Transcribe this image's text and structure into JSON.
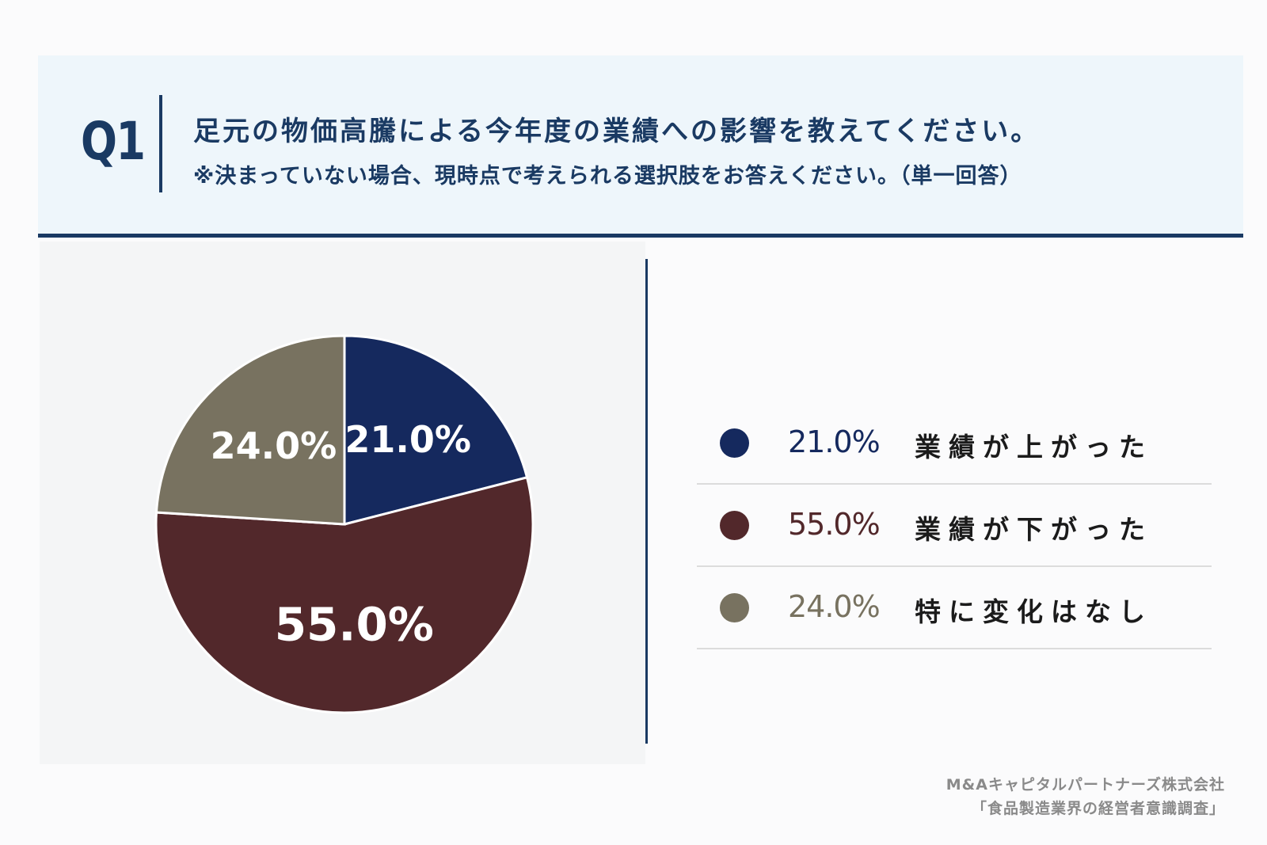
{
  "question": {
    "label": "Q1",
    "text": "足元の物価高騰による今年度の業績への影響を教えてください。",
    "note": "※決まっていない場合、現時点で考えられる選択肢をお答えください。（単一回答）"
  },
  "colors": {
    "up": "#15295e",
    "down": "#52282b",
    "none": "#787260",
    "accent": "#1a3a63"
  },
  "chart_data": {
    "type": "pie",
    "title": "",
    "slices": [
      {
        "label": "業績が上がった",
        "value": 21.0,
        "display": "21.0%",
        "color": "#15295e"
      },
      {
        "label": "業績が下がった",
        "value": 55.0,
        "display": "55.0%",
        "color": "#52282b"
      },
      {
        "label": "特に変化はなし",
        "value": 24.0,
        "display": "24.0%",
        "color": "#787260"
      }
    ],
    "start_angle_deg": 0,
    "direction": "clockwise",
    "legend_position": "right"
  },
  "source": {
    "line1": "M&Aキャピタルパートナーズ株式会社",
    "line2": "「食品製造業界の経営者意識調査」"
  }
}
